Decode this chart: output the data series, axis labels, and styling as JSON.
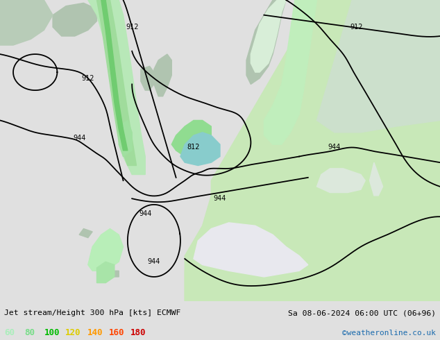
{
  "title_left": "Jet stream/Height 300 hPa [kts] ECMWF",
  "title_right": "Sa 08-06-2024 06:00 UTC (06+96)",
  "credit": "©weatheronline.co.uk",
  "legend_values": [
    60,
    80,
    100,
    120,
    140,
    160,
    180
  ],
  "legend_colors": [
    "#aaeebb",
    "#77dd88",
    "#00bb00",
    "#ddcc00",
    "#ff9900",
    "#ff4400",
    "#cc0000"
  ],
  "figsize": [
    6.34,
    4.9
  ],
  "dpi": 100,
  "map_ocean_color": "#e8e8ee",
  "map_land_color": "#c8e8b8",
  "map_land_gray": "#b8c8b8",
  "jet_light": "#c0eec0",
  "jet_mid": "#88dd88",
  "jet_dark": "#44bb44",
  "jet_teal": "#88ddcc",
  "contour_lw": 1.3,
  "label_fontsize": 7
}
